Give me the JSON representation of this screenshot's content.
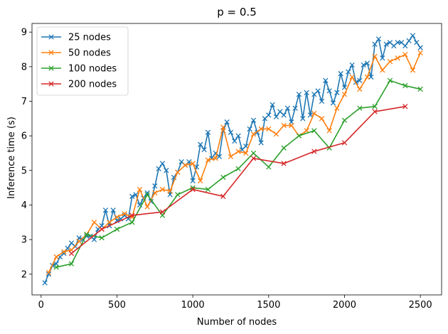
{
  "chart_data": {
    "type": "line",
    "title": "p = 0.5",
    "xlabel": "Number of nodes",
    "ylabel": "Inference time (s)",
    "xlim": [
      -60,
      2640
    ],
    "ylim": [
      1.4,
      9.25
    ],
    "xticks": [
      0,
      500,
      1000,
      1500,
      2000,
      2500
    ],
    "yticks": [
      2,
      3,
      4,
      5,
      6,
      7,
      8,
      9
    ],
    "legend_position": "top-left",
    "grid": false,
    "marker": "x",
    "series": [
      {
        "name": "25 nodes",
        "color": "#1f77b4",
        "x": [
          25,
          50,
          75,
          100,
          125,
          150,
          175,
          200,
          225,
          250,
          275,
          300,
          325,
          350,
          375,
          400,
          425,
          450,
          475,
          500,
          525,
          550,
          575,
          600,
          625,
          650,
          675,
          700,
          725,
          750,
          775,
          800,
          825,
          850,
          875,
          900,
          925,
          950,
          975,
          1000,
          1025,
          1050,
          1075,
          1100,
          1125,
          1150,
          1175,
          1200,
          1225,
          1250,
          1275,
          1300,
          1325,
          1350,
          1375,
          1400,
          1425,
          1450,
          1475,
          1500,
          1525,
          1550,
          1575,
          1600,
          1625,
          1650,
          1675,
          1700,
          1725,
          1750,
          1775,
          1800,
          1825,
          1850,
          1875,
          1900,
          1925,
          1950,
          1975,
          2000,
          2025,
          2050,
          2075,
          2100,
          2125,
          2150,
          2175,
          2200,
          2225,
          2250,
          2275,
          2300,
          2325,
          2350,
          2375,
          2400,
          2425,
          2450,
          2475,
          2500
        ],
        "y": [
          1.75,
          2.0,
          2.25,
          2.3,
          2.5,
          2.6,
          2.75,
          2.9,
          2.8,
          3.05,
          3.0,
          3.1,
          3.1,
          3.0,
          3.3,
          3.4,
          3.85,
          3.4,
          3.85,
          3.55,
          3.6,
          3.7,
          3.6,
          4.25,
          4.3,
          4.0,
          4.2,
          4.35,
          4.1,
          4.55,
          5.05,
          5.2,
          5.0,
          4.3,
          4.8,
          4.95,
          5.25,
          5.15,
          5.25,
          4.7,
          5.1,
          5.75,
          5.6,
          6.1,
          5.35,
          5.5,
          5.4,
          6.15,
          6.4,
          6.1,
          5.85,
          6.0,
          5.6,
          5.7,
          6.2,
          6.45,
          6.1,
          5.8,
          6.5,
          6.6,
          6.9,
          6.55,
          6.7,
          6.6,
          6.8,
          6.4,
          6.8,
          7.2,
          6.5,
          7.25,
          6.6,
          7.2,
          7.3,
          7.0,
          7.6,
          7.3,
          6.95,
          7.25,
          7.8,
          7.4,
          7.85,
          8.05,
          7.55,
          7.6,
          8.05,
          8.1,
          7.7,
          8.65,
          8.8,
          8.25,
          8.65,
          8.7,
          8.6,
          8.7,
          8.7,
          8.6,
          8.75,
          8.9,
          8.7,
          8.55
        ]
      },
      {
        "name": "50 nodes",
        "color": "#ff7f0e",
        "x": [
          50,
          100,
          150,
          200,
          250,
          300,
          350,
          400,
          450,
          500,
          550,
          600,
          650,
          700,
          750,
          800,
          850,
          900,
          950,
          1000,
          1050,
          1100,
          1150,
          1200,
          1250,
          1300,
          1350,
          1400,
          1450,
          1500,
          1550,
          1600,
          1650,
          1700,
          1750,
          1800,
          1850,
          1900,
          1950,
          2000,
          2050,
          2100,
          2150,
          2200,
          2250,
          2300,
          2350,
          2400,
          2450,
          2500
        ],
        "y": [
          2.05,
          2.5,
          2.65,
          2.7,
          2.95,
          3.15,
          3.5,
          3.3,
          3.5,
          3.65,
          3.75,
          3.65,
          4.45,
          3.95,
          4.35,
          4.45,
          4.4,
          4.95,
          5.15,
          5.2,
          4.7,
          5.3,
          5.35,
          6.25,
          5.4,
          5.55,
          5.5,
          6.05,
          6.2,
          6.2,
          6.05,
          6.3,
          6.3,
          6.0,
          6.15,
          6.65,
          6.5,
          6.15,
          6.8,
          7.2,
          7.7,
          7.35,
          7.7,
          8.3,
          7.9,
          8.15,
          8.25,
          8.35,
          7.9,
          8.4
        ]
      },
      {
        "name": "100 nodes",
        "color": "#2ca02c",
        "x": [
          100,
          200,
          300,
          400,
          500,
          600,
          700,
          800,
          900,
          1000,
          1100,
          1200,
          1300,
          1400,
          1500,
          1600,
          1700,
          1800,
          1900,
          2000,
          2100,
          2200,
          2300,
          2400,
          2500
        ],
        "y": [
          2.2,
          2.3,
          3.15,
          3.05,
          3.3,
          3.5,
          4.3,
          3.7,
          4.3,
          4.5,
          4.45,
          4.8,
          5.05,
          5.5,
          5.1,
          5.65,
          6.0,
          6.15,
          5.65,
          6.45,
          6.8,
          6.85,
          7.6,
          7.45,
          7.35
        ]
      },
      {
        "name": "200 nodes",
        "color": "#d62728",
        "x": [
          200,
          400,
          600,
          800,
          1000,
          1200,
          1400,
          1600,
          1800,
          2000,
          2200,
          2400
        ],
        "y": [
          2.6,
          3.3,
          3.7,
          3.8,
          4.45,
          4.25,
          5.35,
          5.2,
          5.55,
          5.8,
          6.7,
          6.85
        ]
      }
    ]
  }
}
